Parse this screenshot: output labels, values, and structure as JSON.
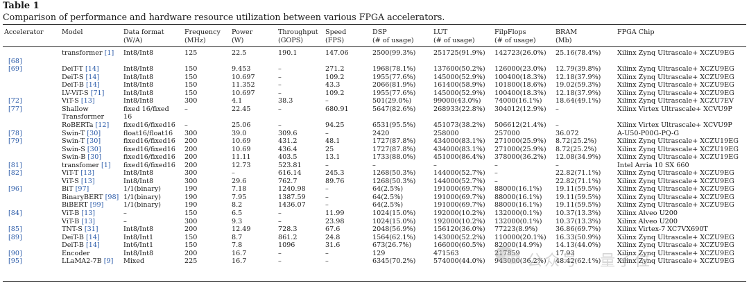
{
  "table": {
    "label": "Table 1",
    "caption": "Comparison of performance and hardware resource utilization between various FPGA accelerators."
  },
  "headers": {
    "accelerator": [
      "Accelerator"
    ],
    "model": [
      "Model"
    ],
    "format": [
      "Data format",
      "(W/A)"
    ],
    "freq": [
      "Frequency",
      "(MHz)"
    ],
    "power": [
      "Power",
      "(W)"
    ],
    "thr": [
      "Throughput",
      "(GOPS)"
    ],
    "speed": [
      "Speed",
      "(FPS)"
    ],
    "dsp": [
      "DSP",
      "(# of usage)"
    ],
    "lut": [
      "LUT",
      "(# of usage)"
    ],
    "ff": [
      "FilpFlops",
      "(# of usage)"
    ],
    "bram": [
      "BRAM",
      "(Mb)"
    ],
    "chip": [
      "FPGA Chip"
    ]
  },
  "rows": [
    {
      "acc": "",
      "model": "transformer",
      "model_ref": "[1]",
      "format": "Int8/Int8",
      "freq": "125",
      "power": "22.5",
      "thr": "190.1",
      "speed": "147.06",
      "dsp": "2500(99.3%)",
      "lut": "251725(91.9%)",
      "ff": "142723(26.0%)",
      "bram": "25.16(78.4%)",
      "chip": "Xilinx Zynq Ultrascale+ XCZU9EG"
    },
    {
      "acc": "[68]",
      "model": "",
      "model_ref": "",
      "format": "",
      "freq": "",
      "power": "",
      "thr": "",
      "speed": "",
      "dsp": "",
      "lut": "",
      "ff": "",
      "bram": "",
      "chip": ""
    },
    {
      "acc": "[69]",
      "model": "DeiT-T",
      "model_ref": "[14]",
      "format": "Int8/Int8",
      "freq": "150",
      "power": "9.453",
      "thr": "–",
      "speed": "271.2",
      "dsp": "1968(78.1%)",
      "lut": "137600(50.2%)",
      "ff": "126000(23.0%)",
      "bram": "12.79(39.8%)",
      "chip": "Xilinx Zynq Ultrascale+ XCZU9EG"
    },
    {
      "acc": "",
      "model": "DeiT-S",
      "model_ref": "[14]",
      "format": "Int8/Int8",
      "freq": "150",
      "power": "10.697",
      "thr": "–",
      "speed": "109.2",
      "dsp": "1955(77.6%)",
      "lut": "145000(52.9%)",
      "ff": "100400(18.3%)",
      "bram": "12.18(37.9%)",
      "chip": "Xilinx Zynq Ultrascale+ XCZU9EG"
    },
    {
      "acc": "",
      "model": "DeiT-B",
      "model_ref": "[14]",
      "format": "Int8/Int8",
      "freq": "150",
      "power": "11.352",
      "thr": "–",
      "speed": "43.3",
      "dsp": "2066(81.9%)",
      "lut": "161400(58.9%)",
      "ff": "101800(18.6%)",
      "bram": "19.02(59.3%)",
      "chip": "Xilinx Zynq Ultrascale+ XCZU9EG"
    },
    {
      "acc": "",
      "model": "LV-ViT-S",
      "model_ref": "[71]",
      "format": "Int8/Int8",
      "freq": "150",
      "power": "10.697",
      "thr": "–",
      "speed": "109.2",
      "dsp": "1955(77.6%)",
      "lut": "145000(52.9%)",
      "ff": "100400(18.3%)",
      "bram": "12.18(37.9%)",
      "chip": "Xilinx Zynq Ultrascale+ XCZU9EG"
    },
    {
      "acc": "[72]",
      "model": "ViT-S",
      "model_ref": "[13]",
      "format": "Int8/Int8",
      "freq": "300",
      "power": "4.1",
      "thr": "38.3",
      "speed": "–",
      "dsp": "501(29.0%)",
      "lut": "99000(43.0%)",
      "ff": "74000(16.1%)",
      "bram": "18.64(49.1%)",
      "chip": "Xilinx Zynq Ultrascale+ XCZU7EV"
    },
    {
      "acc": "[77]",
      "model": "Shallow",
      "model_ref": "",
      "format": "fixed 16/fixed",
      "freq": "–",
      "power": "22.45",
      "thr": "–",
      "speed": "680.91",
      "dsp": "5647(82.6%)",
      "lut": "268933(22.8%)",
      "ff": "304012(12.9%)",
      "bram": "–",
      "chip": "Xilinx Virtex Ultrascale+ XCVU9P"
    },
    {
      "acc": "",
      "model": "Transformer",
      "model_ref": "",
      "format": "16",
      "freq": "",
      "power": "",
      "thr": "",
      "speed": "",
      "dsp": "",
      "lut": "",
      "ff": "",
      "bram": "",
      "chip": ""
    },
    {
      "acc": "",
      "model": "RoBERTa",
      "model_ref": "[12]",
      "format": "fixed16/fixed16",
      "freq": "–",
      "power": "25.06",
      "thr": "–",
      "speed": "94.25",
      "dsp": "6531(95.5%)",
      "lut": "451073(38.2%)",
      "ff": "506612(21.4%)",
      "bram": "–",
      "chip": "Xilinx Virtex Ultrascale+ XCVU9P"
    },
    {
      "acc": "[78]",
      "model": "Swin-T",
      "model_ref": "[30]",
      "format": "float16/float16",
      "freq": "300",
      "power": "39.0",
      "thr": "309.6",
      "speed": "–",
      "dsp": "2420",
      "lut": "258000",
      "ff": "257000",
      "bram": "36.072",
      "chip": "A-U50-P00G-PQ-G"
    },
    {
      "acc": "[79]",
      "model": "Swin-T",
      "model_ref": "[30]",
      "format": "fixed16/fixed16",
      "freq": "200",
      "power": "10.69",
      "thr": "431.2",
      "speed": "48.1",
      "dsp": "1727(87.8%)",
      "lut": "434000(83.1%)",
      "ff": "271000(25.9%)",
      "bram": "8.72(25.2%)",
      "chip": "Xilinx Zynq Ultrascale+ XCZU19EG"
    },
    {
      "acc": "",
      "model": "Swin-S",
      "model_ref": "[30]",
      "format": "fixed16/fixed16",
      "freq": "200",
      "power": "10.69",
      "thr": "436.4",
      "speed": "25",
      "dsp": "1727(87.8%)",
      "lut": "434000(83.1%)",
      "ff": "271000(25.9%)",
      "bram": "8.72(25.2%)",
      "chip": "Xilinx Zynq Ultrascale+ XCZU19EG"
    },
    {
      "acc": "",
      "model": "Swin-B",
      "model_ref": "[30]",
      "format": "fixed16/fixed16",
      "freq": "200",
      "power": "11.11",
      "thr": "403.5",
      "speed": "13.1",
      "dsp": "1733(88.0%)",
      "lut": "451000(86.4%)",
      "ff": "378000(36.2%)",
      "bram": "12.08(34.9%)",
      "chip": "Xilinx Zynq Ultrascale+ XCZU19EG"
    },
    {
      "acc": "[81]",
      "model": "transfomer",
      "model_ref": "[1]",
      "format": "fixed16/fixed16",
      "freq": "200",
      "power": "12.73",
      "thr": "523.81",
      "speed": "–",
      "dsp": "–",
      "lut": "–",
      "ff": "–",
      "bram": "–",
      "chip": "Intel Arria 10 SX 660"
    },
    {
      "acc": "[82]",
      "model": "ViT-T",
      "model_ref": "[13]",
      "format": "Int8/Int8",
      "freq": "300",
      "power": "–",
      "thr": "616.14",
      "speed": "245.3",
      "dsp": "1268(50.3%)",
      "lut": "144000(52.7%)",
      "ff": "–",
      "bram": "22.82(71.1%)",
      "chip": "Xilinx Zynq Ultrascale+ XCZU9EG"
    },
    {
      "acc": "",
      "model": "ViT-S",
      "model_ref": "[13]",
      "format": "Int8/Int8",
      "freq": "300",
      "power": "29.6",
      "thr": "762.7",
      "speed": "89.76",
      "dsp": "1268(50.3%)",
      "lut": "144000(52.7%)",
      "ff": "–",
      "bram": "22.82(71.1%)",
      "chip": "Xilinx Zynq Ultrascale+ XCZU9EG"
    },
    {
      "acc": "[96]",
      "model": "BiT",
      "model_ref": "[97]",
      "format": "1/1(binary)",
      "freq": "190",
      "power": "7.18",
      "thr": "1240.98",
      "speed": "–",
      "dsp": "64(2.5%)",
      "lut": "191000(69.7%)",
      "ff": "88000(16.1%)",
      "bram": "19.11(59.5%)",
      "chip": "Xilinx Zynq Ultrascale+ XCZU9EG"
    },
    {
      "acc": "",
      "model": "BinaryBERT",
      "model_ref": "[98]",
      "format": "1/1(binary)",
      "freq": "190",
      "power": "7.95",
      "thr": "1387.59",
      "speed": "–",
      "dsp": "64(2.5%)",
      "lut": "191000(69.7%)",
      "ff": "88000(16.1%)",
      "bram": "19.11(59.5%)",
      "chip": "Xilinx Zynq Ultrascale+ XCZU9EG"
    },
    {
      "acc": "",
      "model": "BiBERT",
      "model_ref": "[99]",
      "format": "1/1(binary)",
      "freq": "190",
      "power": "8.2",
      "thr": "1436.07",
      "speed": "–",
      "dsp": "64(2.5%)",
      "lut": "191000(69.7%)",
      "ff": "88000(16.1%)",
      "bram": "19.11(59.5%)",
      "chip": "Xilinx Zynq Ultrascale+ XCZU9EG"
    },
    {
      "acc": "[84]",
      "model": "ViT-B",
      "model_ref": "[13]",
      "format": "–",
      "freq": "150",
      "power": "6.5",
      "thr": "–",
      "speed": "11.99",
      "dsp": "1024(15.0%)",
      "lut": "192000(10.2%)",
      "ff": "132000(0.1%)",
      "bram": "10.37(13.3%)",
      "chip": "Xilinx Alveo U200"
    },
    {
      "acc": "",
      "model": "ViT-B",
      "model_ref": "[13]",
      "format": "–",
      "freq": "300",
      "power": "9.3",
      "thr": "–",
      "speed": "23.98",
      "dsp": "1024(15.0%)",
      "lut": "192000(10.2%)",
      "ff": "132000(0.1%)",
      "bram": "10.37(13.3%)",
      "chip": "Xilinx Alveo U200"
    },
    {
      "acc": "[85]",
      "model": "TNT-S",
      "model_ref": "[31]",
      "format": "Int8/Int8",
      "freq": "200",
      "power": "12.49",
      "thr": "728.3",
      "speed": "67.6",
      "dsp": "2048(56.9%)",
      "lut": "156120(36.0%)",
      "ff": "77223(8.9%)",
      "bram": "36.86(69.7%)",
      "chip": "Xilinx Virtex-7 XC7VX690T"
    },
    {
      "acc": "[89]",
      "model": "DeiT-B",
      "model_ref": "[14]",
      "format": "Int8/Int1",
      "freq": "150",
      "power": "8.7",
      "thr": "861.2",
      "speed": "24.8",
      "dsp": "1564(62.1%)",
      "lut": "143000(52.2%)",
      "ff": "110000(20.1%)",
      "bram": "16.33(50.9%)",
      "chip": "Xilinx Zynq Ultrascale+ XCZU9EG"
    },
    {
      "acc": "",
      "model": "DeiT-B",
      "model_ref": "[14]",
      "format": "Int6/Int1",
      "freq": "150",
      "power": "7.8",
      "thr": "1096",
      "speed": "31.6",
      "dsp": "673(26.7%)",
      "lut": "166000(60.5%)",
      "ff": "82000(14.9%)",
      "bram": "14.13(44.0%)",
      "chip": "Xilinx Zynq Ultrascale+ XCZU9EG"
    },
    {
      "acc": "[90]",
      "model": "Encoder",
      "model_ref": "",
      "format": "Int8/Int8",
      "freq": "200",
      "power": "16.7",
      "thr": "–",
      "speed": "–",
      "dsp": "129",
      "lut": "471563",
      "ff": "217859",
      "bram": "17.93",
      "chip": "Xilinx Zynq Ultrascale+ XCZU9EG"
    },
    {
      "acc": "[95]",
      "model": "LLaMA2-7B",
      "model_ref": "[9]",
      "format": "Mixed",
      "freq": "225",
      "power": "16.7",
      "thr": "–",
      "speed": "–",
      "dsp": "6345(70.2%)",
      "lut": "574000(44.0%)",
      "ff": "943000(36.2%)",
      "bram": "48.42(62.1%)",
      "chip": "Xilinx Zynq Ultrascale+ XCZU9EG"
    }
  ],
  "watermark": {
    "text": "公众号 · 量子位",
    "icon": "wechat-icon"
  }
}
